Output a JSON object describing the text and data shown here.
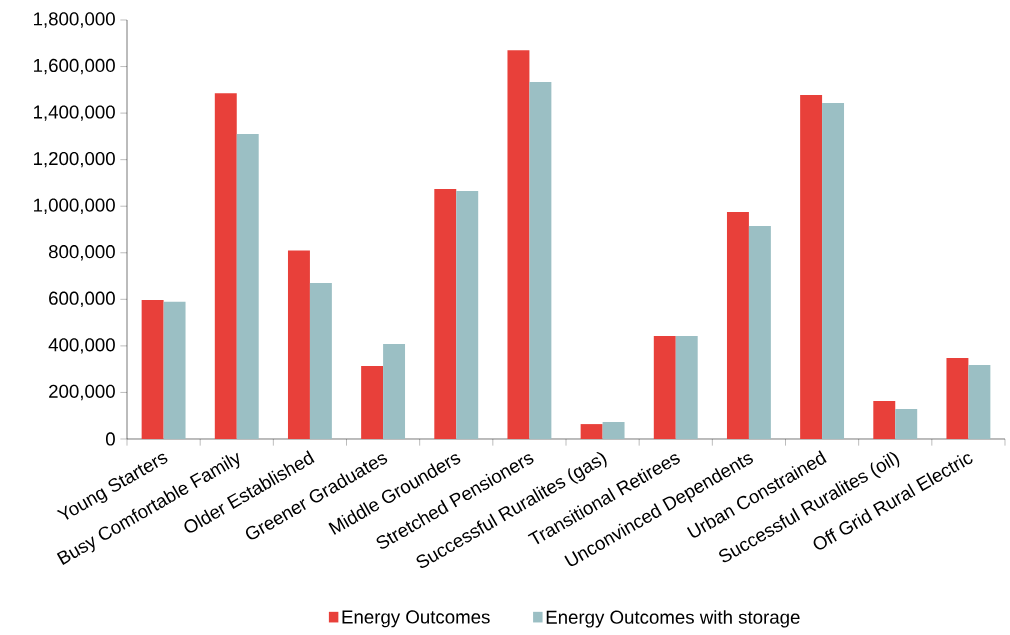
{
  "chart_data": {
    "type": "bar",
    "categories": [
      "Young Starters",
      "Busy Comfortable Family",
      "Older Established",
      "Greener Graduates",
      "Middle Grounders",
      "Stretched Pensioners",
      "Successful Ruralites (gas)",
      "Transitional Retirees",
      "Unconvinced Dependents",
      "Urban Constrained",
      "Successful Ruralites (oil)",
      "Off Grid Rural Electric"
    ],
    "series": [
      {
        "name": "Energy Outcomes",
        "color": "#e8403a",
        "values": [
          597000,
          1485000,
          810000,
          314000,
          1074000,
          1670000,
          64000,
          442000,
          975000,
          1478000,
          163000,
          348000
        ]
      },
      {
        "name": "Energy Outcomes with storage",
        "color": "#9bbfc4",
        "values": [
          590000,
          1310000,
          670000,
          408000,
          1065000,
          1534000,
          73000,
          442000,
          915000,
          1443000,
          129000,
          318000
        ]
      }
    ],
    "ylim": [
      0,
      1800000
    ],
    "yticks": [
      0,
      {
        "value": 200000,
        "label": "200,000"
      },
      {
        "value": 400000,
        "label": "400,000"
      },
      {
        "value": 600000,
        "label": "600,000"
      },
      {
        "value": 800000,
        "label": "800,000"
      },
      {
        "value": 1000000,
        "label": "1,000,000"
      },
      {
        "value": 1200000,
        "label": "1,200,000"
      },
      {
        "value": 1400000,
        "label": "1,400,000"
      },
      {
        "value": 1600000,
        "label": "1,600,000"
      },
      {
        "value": 1800000,
        "label": "1,800,000"
      }
    ],
    "grid": false,
    "legend": "bottom"
  }
}
